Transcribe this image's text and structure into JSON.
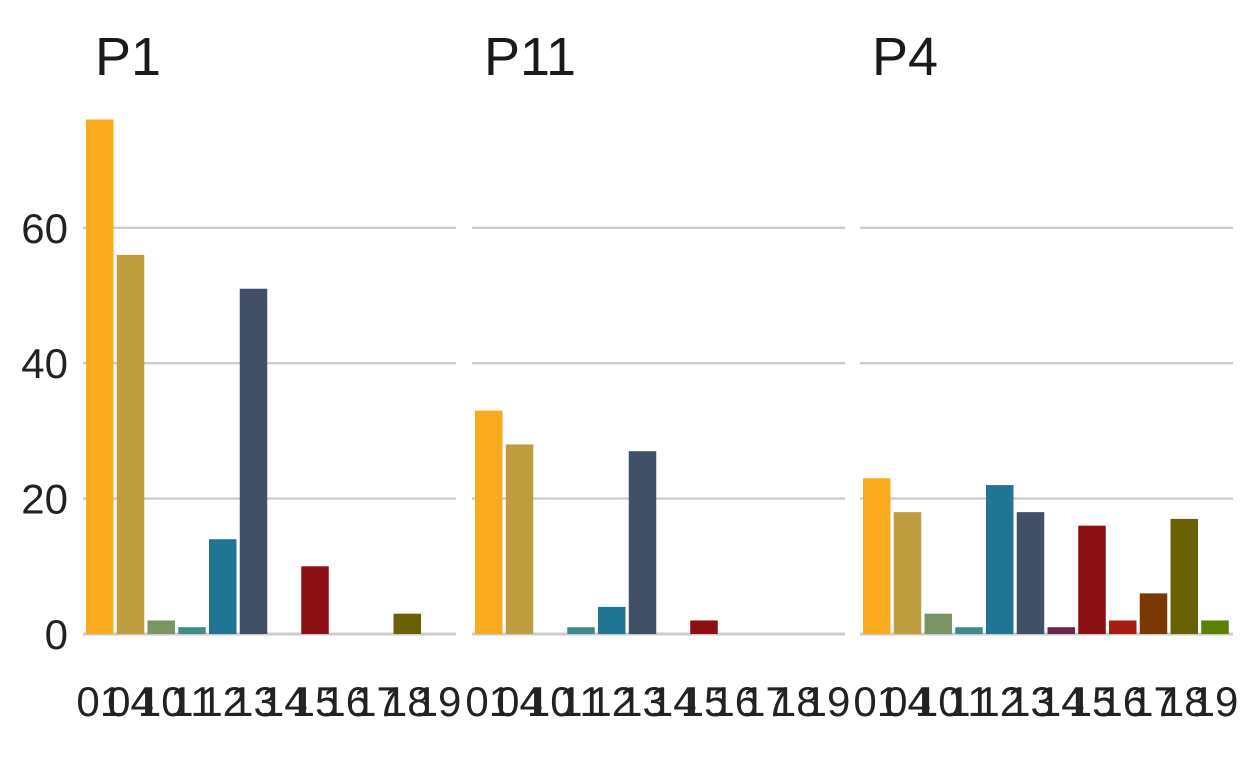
{
  "chart_data": {
    "type": "bar",
    "layout": "facets",
    "categories": [
      "01",
      "04",
      "10",
      "11",
      "12",
      "13",
      "14",
      "15",
      "16",
      "17",
      "18",
      "19"
    ],
    "colors": [
      "#F9AB1D",
      "#BE9D3E",
      "#7A9464",
      "#3C8C8C",
      "#217594",
      "#415066",
      "#6B2749",
      "#8C0F14",
      "#A61C10",
      "#7A3805",
      "#6A6103",
      "#5A8004"
    ],
    "ylim": [
      0,
      76
    ],
    "yticks": [
      0,
      20,
      40,
      60
    ],
    "grid": true,
    "panels": [
      {
        "title": "P1",
        "values": [
          76,
          56,
          2,
          1,
          14,
          51,
          0,
          10,
          0,
          0,
          3,
          0
        ]
      },
      {
        "title": "P11",
        "values": [
          33,
          28,
          0,
          1,
          4,
          27,
          0,
          2,
          0,
          0,
          0,
          0
        ]
      },
      {
        "title": "P4",
        "values": [
          23,
          18,
          3,
          1,
          22,
          18,
          1,
          16,
          2,
          6,
          17,
          2
        ]
      }
    ]
  }
}
